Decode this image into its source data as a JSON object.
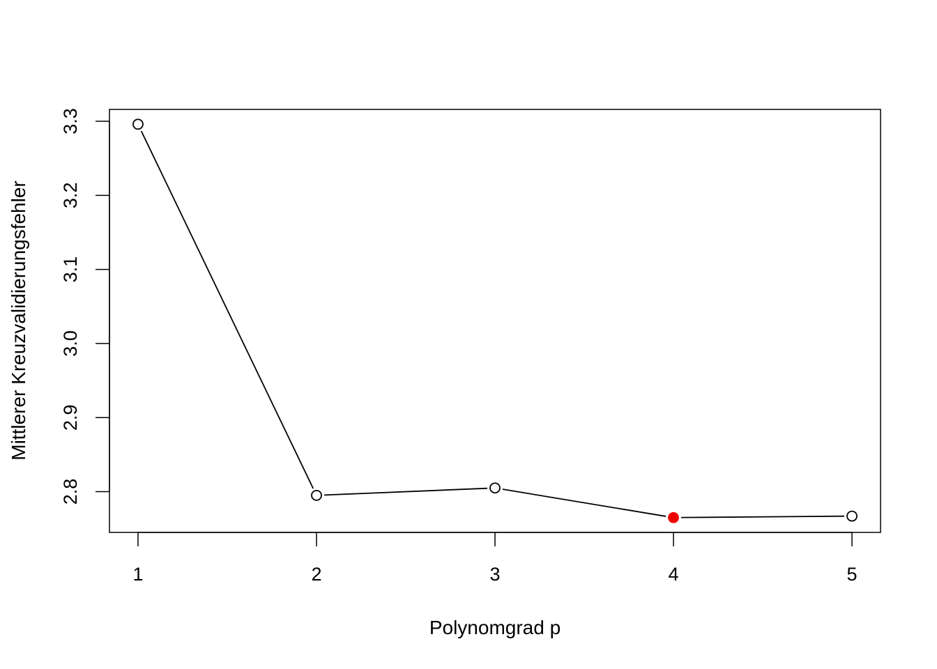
{
  "chart_data": {
    "type": "line",
    "title": "",
    "xlabel": "Polynomgrad p",
    "ylabel": "Mittlerer Kreuzvalidierungsfehler",
    "x": [
      1,
      2,
      3,
      4,
      5
    ],
    "y": [
      3.296,
      2.795,
      2.805,
      2.765,
      2.767
    ],
    "highlight_index": 3,
    "highlight_color": "#ee0000",
    "point_fill": "#ffffff",
    "line_color": "#000000",
    "xlim": [
      0.84,
      5.16
    ],
    "ylim": [
      2.745,
      3.316
    ],
    "xticks": [
      "1",
      "2",
      "3",
      "4",
      "5"
    ],
    "yticks": [
      "2.8",
      "2.9",
      "3.0",
      "3.1",
      "3.2",
      "3.3"
    ],
    "grid": false,
    "legend": "none"
  }
}
